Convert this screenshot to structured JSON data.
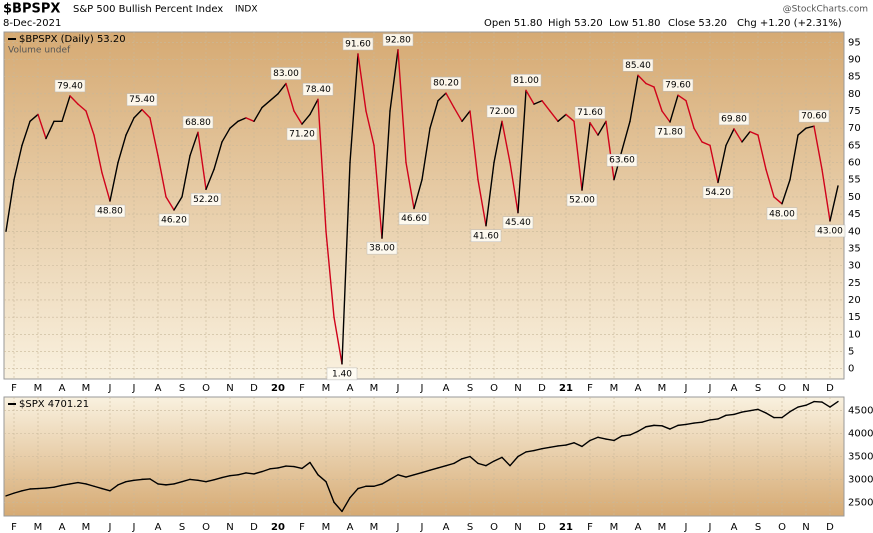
{
  "header": {
    "title": "$BPSPX",
    "subtitle": "S&P 500 Bullish Percent Index",
    "exchange": "INDX",
    "date": "8-Dec-2021",
    "quote": [
      "Open 51.80",
      "High 53.20",
      "Low 51.80",
      "Close 53.20",
      "Chg +1.20 (+2.31%)"
    ],
    "watermark": "@StockCharts.com"
  },
  "chart_data": [
    {
      "type": "line",
      "legend": [
        "$BPSPX (Daily) 53.20",
        "Volume undef"
      ],
      "categories": [
        null,
        "F",
        null,
        null,
        "M",
        null,
        null,
        "A",
        null,
        null,
        "M",
        null,
        null,
        "J",
        null,
        null,
        "J",
        null,
        null,
        "A",
        null,
        null,
        "S",
        null,
        null,
        "O",
        null,
        null,
        "N",
        null,
        null,
        "D",
        null,
        null,
        "20",
        null,
        null,
        "F",
        null,
        null,
        "M",
        null,
        null,
        "A",
        null,
        null,
        "M",
        null,
        null,
        "J",
        null,
        null,
        "J",
        null,
        null,
        "A",
        null,
        null,
        "S",
        null,
        null,
        "O",
        null,
        null,
        "N",
        null,
        null,
        "D",
        null,
        null,
        "21",
        null,
        null,
        "F",
        null,
        null,
        "M",
        null,
        null,
        "A",
        null,
        null,
        "M",
        null,
        null,
        "J",
        null,
        null,
        "J",
        null,
        null,
        "A",
        null,
        null,
        "S",
        null,
        null,
        "O",
        null,
        null,
        "N",
        null,
        null,
        "D",
        null
      ],
      "series": [
        {
          "name": "$BPSPX",
          "color": "#000000",
          "falling_color": "#d0021b",
          "values": [
            40,
            55,
            65,
            72,
            74,
            67,
            72,
            72,
            79.4,
            77,
            75,
            68,
            57,
            48.8,
            60,
            68,
            73,
            75.4,
            73,
            62,
            50,
            46.2,
            50,
            62,
            68.8,
            52.2,
            58,
            66,
            70,
            72,
            73,
            72,
            76,
            78,
            80,
            83,
            75,
            71.2,
            74,
            78.4,
            40,
            15,
            1.4,
            60,
            91.6,
            75,
            65,
            38,
            75,
            92.8,
            60,
            46.6,
            55,
            70,
            78,
            80.2,
            76,
            72,
            75,
            55,
            41.6,
            60,
            72,
            60,
            45.4,
            81,
            77,
            78,
            75,
            72,
            74,
            72,
            52,
            71.6,
            68,
            72,
            55,
            63.6,
            72,
            85.4,
            83,
            82,
            75,
            71.8,
            79.6,
            78,
            70,
            66,
            65,
            54.2,
            65,
            69.8,
            66,
            69,
            68,
            58,
            50,
            48,
            55,
            68,
            70,
            70.6,
            58,
            43,
            53.2
          ],
          "value_labels": [
            null,
            null,
            null,
            null,
            null,
            null,
            null,
            null,
            "79.40",
            null,
            null,
            null,
            null,
            "48.80",
            null,
            null,
            null,
            "75.40",
            null,
            null,
            null,
            "46.20",
            null,
            null,
            "68.80",
            "52.20",
            null,
            null,
            null,
            null,
            null,
            null,
            null,
            null,
            null,
            "83.00",
            null,
            "71.20",
            null,
            "78.40",
            null,
            null,
            "1.40",
            null,
            "91.60",
            null,
            null,
            "38.00",
            null,
            "92.80",
            null,
            "46.60",
            null,
            null,
            null,
            "80.20",
            null,
            null,
            null,
            null,
            "41.60",
            null,
            "72.00",
            null,
            "45.40",
            "81.00",
            null,
            null,
            null,
            null,
            null,
            null,
            "52.00",
            "71.60",
            null,
            null,
            null,
            "63.60",
            null,
            "85.40",
            null,
            null,
            null,
            "71.80",
            "79.60",
            null,
            null,
            null,
            null,
            "54.20",
            null,
            "69.80",
            null,
            null,
            null,
            null,
            null,
            "48.00",
            null,
            null,
            null,
            "70.60",
            null,
            "43.00",
            null
          ]
        }
      ],
      "ylim": [
        -3,
        98
      ],
      "yticks": [
        0,
        5,
        10,
        15,
        20,
        25,
        30,
        35,
        40,
        45,
        50,
        55,
        60,
        65,
        70,
        75,
        80,
        85,
        90,
        95
      ],
      "grid": true
    },
    {
      "type": "line",
      "legend": [
        "$SPX 4701.21"
      ],
      "categories": [
        null,
        "F",
        null,
        null,
        "M",
        null,
        null,
        "A",
        null,
        null,
        "M",
        null,
        null,
        "J",
        null,
        null,
        "J",
        null,
        null,
        "A",
        null,
        null,
        "S",
        null,
        null,
        "O",
        null,
        null,
        "N",
        null,
        null,
        "D",
        null,
        null,
        "20",
        null,
        null,
        "F",
        null,
        null,
        "M",
        null,
        null,
        "A",
        null,
        null,
        "M",
        null,
        null,
        "J",
        null,
        null,
        "J",
        null,
        null,
        "A",
        null,
        null,
        "S",
        null,
        null,
        "O",
        null,
        null,
        "N",
        null,
        null,
        "D",
        null,
        null,
        "21",
        null,
        null,
        "F",
        null,
        null,
        "M",
        null,
        null,
        "A",
        null,
        null,
        "M",
        null,
        null,
        "J",
        null,
        null,
        "J",
        null,
        null,
        "A",
        null,
        null,
        "S",
        null,
        null,
        "O",
        null,
        null,
        "N",
        null,
        null,
        "D",
        null
      ],
      "series": [
        {
          "name": "$SPX",
          "color": "#000000",
          "values": [
            2640,
            2700,
            2750,
            2790,
            2800,
            2810,
            2830,
            2870,
            2900,
            2930,
            2900,
            2850,
            2800,
            2750,
            2880,
            2950,
            2980,
            3000,
            3010,
            2900,
            2880,
            2900,
            2950,
            3000,
            2980,
            2950,
            2990,
            3040,
            3080,
            3100,
            3140,
            3120,
            3170,
            3230,
            3250,
            3290,
            3280,
            3240,
            3370,
            3100,
            2950,
            2500,
            2300,
            2600,
            2800,
            2850,
            2850,
            2900,
            3000,
            3100,
            3050,
            3100,
            3150,
            3200,
            3250,
            3300,
            3350,
            3450,
            3500,
            3350,
            3300,
            3400,
            3480,
            3300,
            3500,
            3600,
            3630,
            3670,
            3700,
            3730,
            3750,
            3800,
            3720,
            3850,
            3920,
            3880,
            3850,
            3950,
            3970,
            4050,
            4150,
            4180,
            4170,
            4100,
            4180,
            4200,
            4230,
            4250,
            4300,
            4320,
            4400,
            4420,
            4470,
            4500,
            4530,
            4450,
            4350,
            4350,
            4480,
            4580,
            4620,
            4700,
            4690,
            4580,
            4701.21
          ]
        }
      ],
      "ylim": [
        2200,
        4800
      ],
      "yticks": [
        2500,
        3000,
        3500,
        4000,
        4500
      ],
      "grid": true
    }
  ]
}
